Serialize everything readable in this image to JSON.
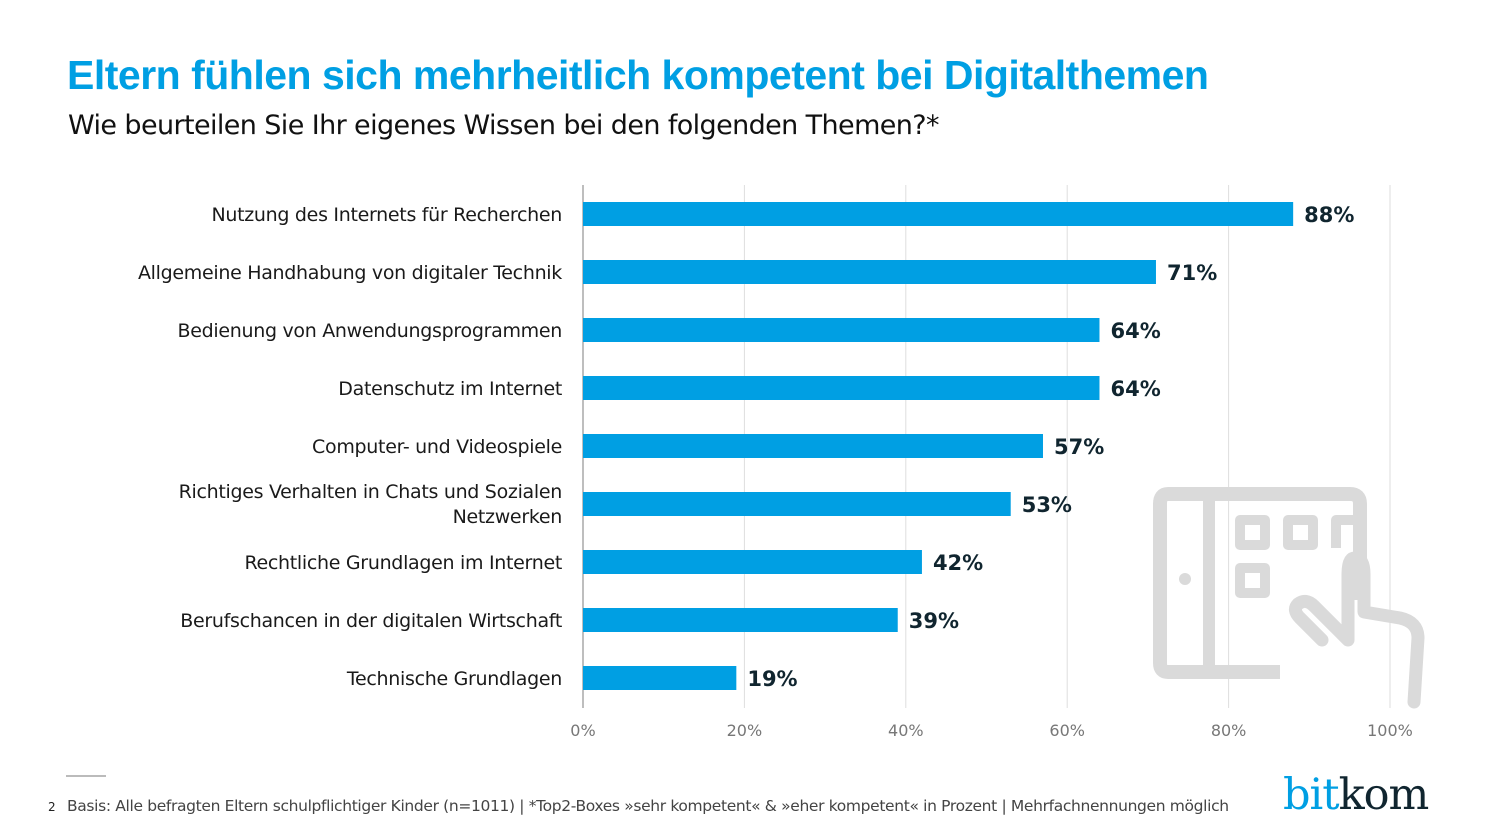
{
  "header": {
    "title": "Eltern fühlen sich mehrheitlich kompetent bei Digitalthemen",
    "subtitle": "Wie beurteilen Sie Ihr eigenes Wissen bei den folgenden Themen?*"
  },
  "chart_data": {
    "type": "bar",
    "orientation": "horizontal",
    "title": "Eltern fühlen sich mehrheitlich kompetent bei Digitalthemen",
    "subtitle": "Wie beurteilen Sie Ihr eigenes Wissen bei den folgenden Themen?*",
    "categories": [
      [
        "Nutzung des Internets für Recherchen"
      ],
      [
        "Allgemeine Handhabung von digitaler Technik"
      ],
      [
        "Bedienung von Anwendungsprogrammen"
      ],
      [
        "Datenschutz im Internet"
      ],
      [
        "Computer- und Videospiele"
      ],
      [
        "Richtiges Verhalten in Chats und Sozialen",
        "Netzwerken"
      ],
      [
        "Rechtliche Grundlagen im Internet"
      ],
      [
        "Berufschancen in der digitalen Wirtschaft"
      ],
      [
        "Technische Grundlagen"
      ]
    ],
    "values": [
      88,
      71,
      64,
      64,
      57,
      53,
      42,
      39,
      19
    ],
    "value_labels": [
      "88%",
      "71%",
      "64%",
      "64%",
      "57%",
      "53%",
      "42%",
      "39%",
      "19%"
    ],
    "xlabel": "",
    "ylabel": "",
    "xlim": [
      0,
      100
    ],
    "x_ticks": [
      0,
      20,
      40,
      60,
      80,
      100
    ],
    "x_tick_labels": [
      "0%",
      "20%",
      "40%",
      "60%",
      "80%",
      "100%"
    ],
    "grid": true,
    "bar_color": "#009fe3"
  },
  "footer": {
    "page_number": "2",
    "note": "Basis: Alle befragten Eltern schulpflichtiger Kinder (n=1011) | *Top2-Boxes »sehr kompetent« & »eher kompetent« in Prozent | Mehrfachnennungen möglich"
  },
  "logo": {
    "part1": "bit",
    "part2": "kom"
  },
  "icons": {
    "decorative": "tablet-touch-icon"
  }
}
